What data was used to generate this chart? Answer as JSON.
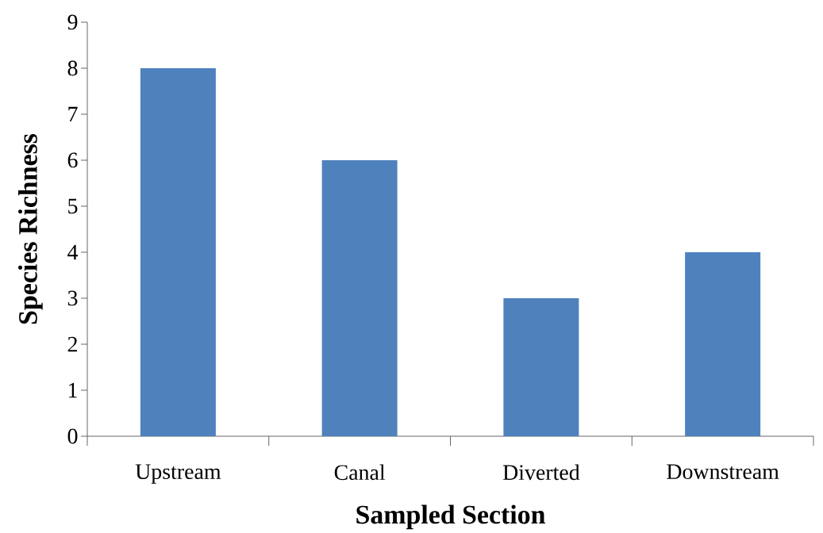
{
  "chart_data": {
    "type": "bar",
    "xlabel": "Sampled Section",
    "ylabel": "Species Richness",
    "categories": [
      "Upstream",
      "Canal",
      "Diverted",
      "Downstream"
    ],
    "values": [
      8,
      6,
      3,
      4
    ],
    "color": "#4f81bd",
    "ylim": [
      0,
      9
    ],
    "yticks": [
      0,
      1,
      2,
      3,
      4,
      5,
      6,
      7,
      8,
      9
    ]
  }
}
